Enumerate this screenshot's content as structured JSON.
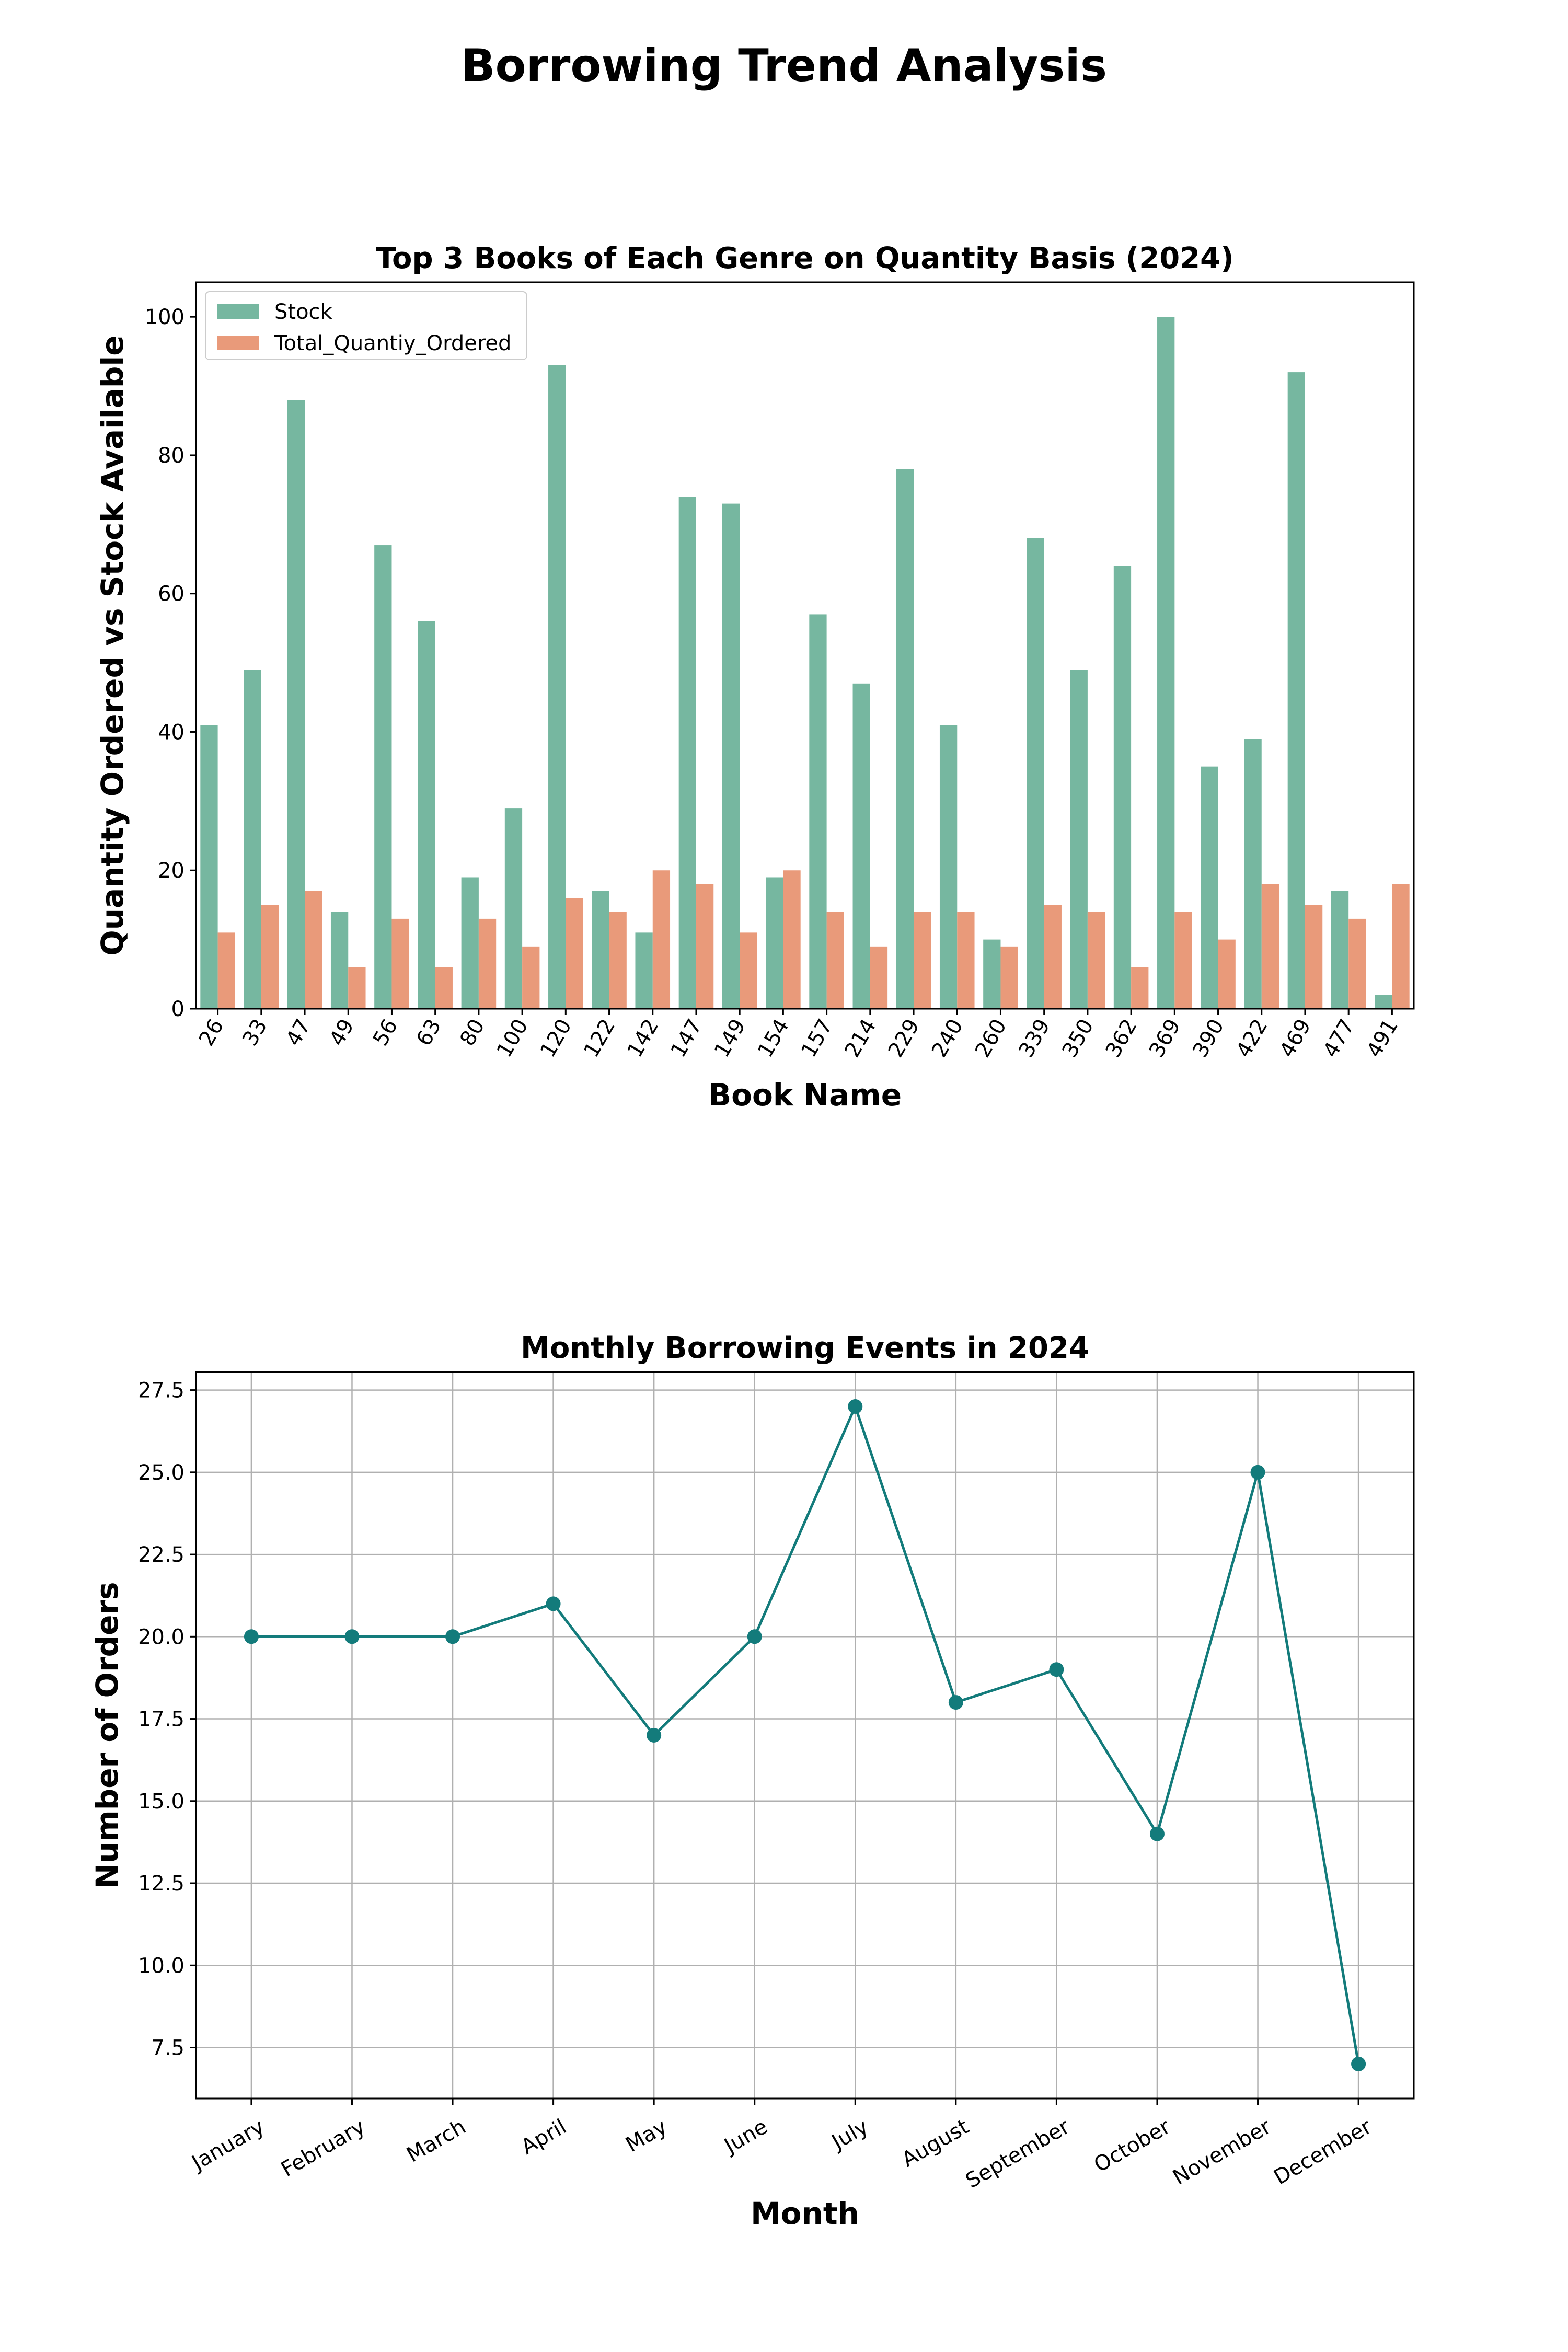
{
  "figure": {
    "title": "Borrowing Trend Analysis"
  },
  "chart_data": [
    {
      "type": "bar",
      "title": "Top 3 Books of Each Genre on Quantity Basis (2024)",
      "xlabel": "Book Name",
      "ylabel": "Quantity Ordered vs Stock Available",
      "ylim": [
        0,
        105
      ],
      "yticks": [
        "0",
        "20",
        "40",
        "60",
        "80",
        "100"
      ],
      "legend_position": "upper-left",
      "grid": false,
      "categories": [
        "26",
        "33",
        "47",
        "49",
        "56",
        "63",
        "80",
        "100",
        "120",
        "122",
        "142",
        "147",
        "149",
        "154",
        "157",
        "214",
        "229",
        "240",
        "260",
        "339",
        "350",
        "362",
        "369",
        "390",
        "422",
        "469",
        "477",
        "491"
      ],
      "series": [
        {
          "name": "Stock",
          "color": "#76b7a0",
          "values": [
            41,
            49,
            88,
            14,
            67,
            56,
            19,
            29,
            93,
            17,
            11,
            74,
            73,
            19,
            57,
            47,
            78,
            41,
            10,
            68,
            49,
            64,
            100,
            35,
            39,
            92,
            17,
            2
          ]
        },
        {
          "name": "Total_Quantiy_Ordered",
          "color": "#e99a7a",
          "values": [
            11,
            15,
            17,
            6,
            13,
            6,
            13,
            9,
            16,
            14,
            20,
            18,
            11,
            20,
            14,
            9,
            14,
            14,
            9,
            15,
            14,
            6,
            14,
            10,
            18,
            15,
            13,
            18
          ]
        }
      ]
    },
    {
      "type": "line",
      "title": "Monthly Borrowing Events in 2024",
      "xlabel": "Month",
      "ylabel": "Number of Orders",
      "ylim": [
        5.95,
        28.05
      ],
      "yticks": [
        "7.5",
        "10.0",
        "12.5",
        "15.0",
        "17.5",
        "20.0",
        "22.5",
        "25.0",
        "27.5"
      ],
      "grid": true,
      "color": "#137b7b",
      "categories": [
        "January",
        "February",
        "March",
        "April",
        "May",
        "June",
        "July",
        "August",
        "September",
        "October",
        "November",
        "December"
      ],
      "values": [
        20,
        20,
        20,
        21,
        17,
        20,
        27,
        18,
        19,
        14,
        25,
        7
      ]
    }
  ]
}
